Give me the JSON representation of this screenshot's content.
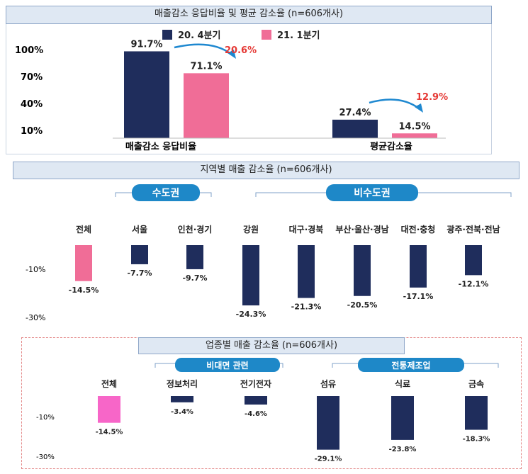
{
  "chart_data": [
    {
      "type": "bar",
      "title": "매출감소 응답비율 및 평균 감소율 (n=606개사)",
      "categories": [
        "매출감소 응답비율",
        "평균감소율"
      ],
      "series": [
        {
          "name": "20. 4분기",
          "values": [
            91.7,
            27.4
          ],
          "labels": [
            "91.7%",
            "27.4%"
          ]
        },
        {
          "name": "21. 1분기",
          "values": [
            71.1,
            14.5
          ],
          "labels": [
            "71.1%",
            "14.5%"
          ]
        }
      ],
      "annotations": [
        "20.6%",
        "12.9%"
      ],
      "yticks": [
        "100%",
        "70%",
        "40%",
        "10%"
      ],
      "ylim": [
        10,
        100
      ],
      "colors": {
        "q4": "#1f2d5c",
        "q1": "#f06d97",
        "annotation": "#e53935"
      }
    },
    {
      "type": "bar",
      "title": "지역별 매출 감소율 (n=606개사)",
      "groups": [
        {
          "label": "수도권"
        },
        {
          "label": "비수도권"
        }
      ],
      "categories": [
        "전체",
        "서울",
        "인천·경기",
        "강원",
        "대구·경북",
        "부산·울산·경남",
        "대전·충청",
        "광주·전북·전남"
      ],
      "values": [
        -14.5,
        -7.7,
        -9.7,
        -24.3,
        -21.3,
        -20.5,
        -17.1,
        -12.1
      ],
      "labels": [
        "-14.5%",
        "-7.7%",
        "-9.7%",
        "-24.3%",
        "-21.3%",
        "-20.5%",
        "-17.1%",
        "-12.1%"
      ],
      "yticks": [
        "-10%",
        "-30%"
      ],
      "colors": {
        "total": "#f06d97",
        "bar": "#1f2d5c"
      }
    },
    {
      "type": "bar",
      "title": "업종별 매출 감소율 (n=606개사)",
      "groups": [
        {
          "label": "비대면 관련"
        },
        {
          "label": "전통제조업"
        }
      ],
      "categories": [
        "전체",
        "정보처리",
        "전기전자",
        "섬유",
        "식료",
        "금속"
      ],
      "values": [
        -14.5,
        -3.4,
        -4.6,
        -29.1,
        -23.8,
        -18.3
      ],
      "labels": [
        "-14.5%",
        "-3.4%",
        "-4.6%",
        "-29.1%",
        "-23.8%",
        "-18.3%"
      ],
      "yticks": [
        "-10%",
        "-30%"
      ],
      "colors": {
        "total": "#f766c8",
        "bar": "#1f2d5c"
      }
    }
  ],
  "theme": {
    "badge": "#1e88c8",
    "title_bg": "#dfe8f3"
  }
}
